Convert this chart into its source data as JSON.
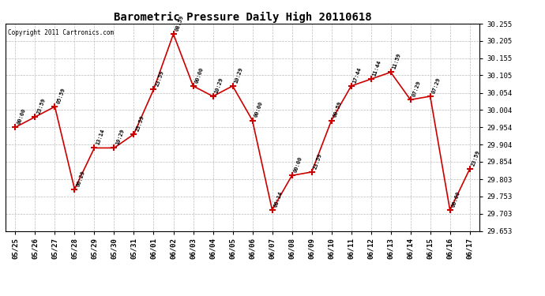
{
  "title": "Barometric Pressure Daily High 20110618",
  "copyright": "Copyright 2011 Cartronics.com",
  "background_color": "#ffffff",
  "plot_bg_color": "#ffffff",
  "grid_color": "#bbbbbb",
  "line_color": "#cc0000",
  "marker_color": "#cc0000",
  "x_labels": [
    "05/25",
    "05/26",
    "05/27",
    "05/28",
    "05/29",
    "05/30",
    "05/31",
    "06/01",
    "06/02",
    "06/03",
    "06/04",
    "06/05",
    "06/06",
    "06/07",
    "06/08",
    "06/09",
    "06/10",
    "06/11",
    "06/12",
    "06/13",
    "06/14",
    "06/15",
    "06/16",
    "06/17"
  ],
  "y_values": [
    29.954,
    29.984,
    30.014,
    29.774,
    29.894,
    29.894,
    29.934,
    30.064,
    30.225,
    30.074,
    30.044,
    30.074,
    29.974,
    29.714,
    29.814,
    29.824,
    29.974,
    30.074,
    30.094,
    30.114,
    30.034,
    30.044,
    29.713,
    29.833
  ],
  "time_labels": [
    "00:00",
    "23:59",
    "05:59",
    "00:29",
    "13:14",
    "10:29",
    "23:59",
    "23:59",
    "08:59",
    "00:00",
    "10:29",
    "10:29",
    "00:00",
    "08:14",
    "00:00",
    "23:59",
    "00:59",
    "17:44",
    "11:44",
    "11:59",
    "07:29",
    "07:29",
    "00:00",
    "23:59"
  ],
  "ylim_min": 29.653,
  "ylim_max": 30.255,
  "yticks": [
    29.653,
    29.703,
    29.753,
    29.803,
    29.854,
    29.904,
    29.954,
    30.004,
    30.054,
    30.105,
    30.155,
    30.205,
    30.255
  ]
}
